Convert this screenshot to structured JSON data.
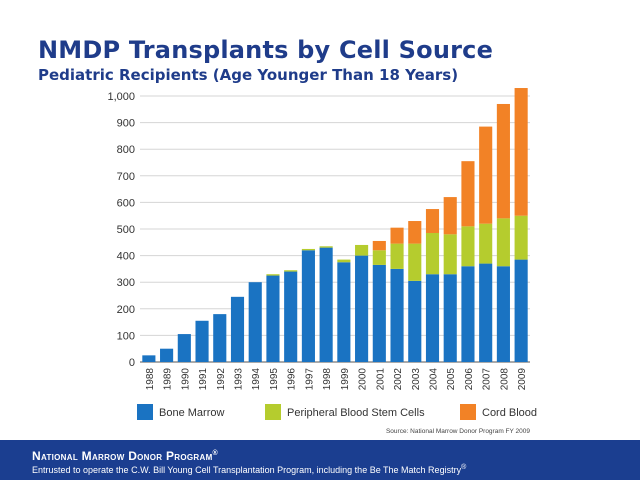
{
  "chart_data": {
    "type": "bar",
    "stacked": true,
    "title": "NMDP Transplants by Cell Source",
    "subtitle": "Pediatric Recipients (Age Younger Than 18 Years)",
    "xlabel": "",
    "ylabel": "",
    "ylim": [
      0,
      1000
    ],
    "yticks": [
      0,
      100,
      200,
      300,
      400,
      500,
      600,
      700,
      800,
      900,
      1000
    ],
    "ytick_labels": [
      "0",
      "100",
      "200",
      "300",
      "400",
      "500",
      "600",
      "700",
      "800",
      "900",
      "1,000"
    ],
    "grid": true,
    "legend_position": "bottom",
    "categories": [
      "1988",
      "1989",
      "1990",
      "1991",
      "1992",
      "1993",
      "1994",
      "1995",
      "1996",
      "1997",
      "1998",
      "1999",
      "2000",
      "2001",
      "2002",
      "2003",
      "2004",
      "2005",
      "2006",
      "2007",
      "2008",
      "2009"
    ],
    "series": [
      {
        "name": "Bone Marrow",
        "color": "#1a73c2",
        "values": [
          25,
          50,
          105,
          155,
          180,
          245,
          300,
          325,
          340,
          420,
          430,
          375,
          400,
          365,
          350,
          305,
          330,
          330,
          360,
          370,
          360,
          385
        ]
      },
      {
        "name": "Peripheral Blood Stem Cells",
        "color": "#b5cc2e",
        "values": [
          0,
          0,
          0,
          0,
          0,
          0,
          0,
          5,
          5,
          5,
          5,
          10,
          40,
          55,
          95,
          140,
          155,
          150,
          150,
          150,
          180,
          165
        ]
      },
      {
        "name": "Cord Blood",
        "color": "#f28226",
        "values": [
          0,
          0,
          0,
          0,
          0,
          0,
          0,
          0,
          0,
          0,
          0,
          0,
          0,
          35,
          60,
          85,
          90,
          140,
          245,
          365,
          430,
          480
        ]
      }
    ],
    "source": "Source: National Marrow Donor Program FY 2009"
  },
  "footer": {
    "org": "National Marrow Donor Program",
    "org_mark": "®",
    "tagline": "Entrusted to operate the C.W. Bill Young Cell Transplantation Program, including the Be The Match Registry",
    "tagline_mark": "®"
  }
}
